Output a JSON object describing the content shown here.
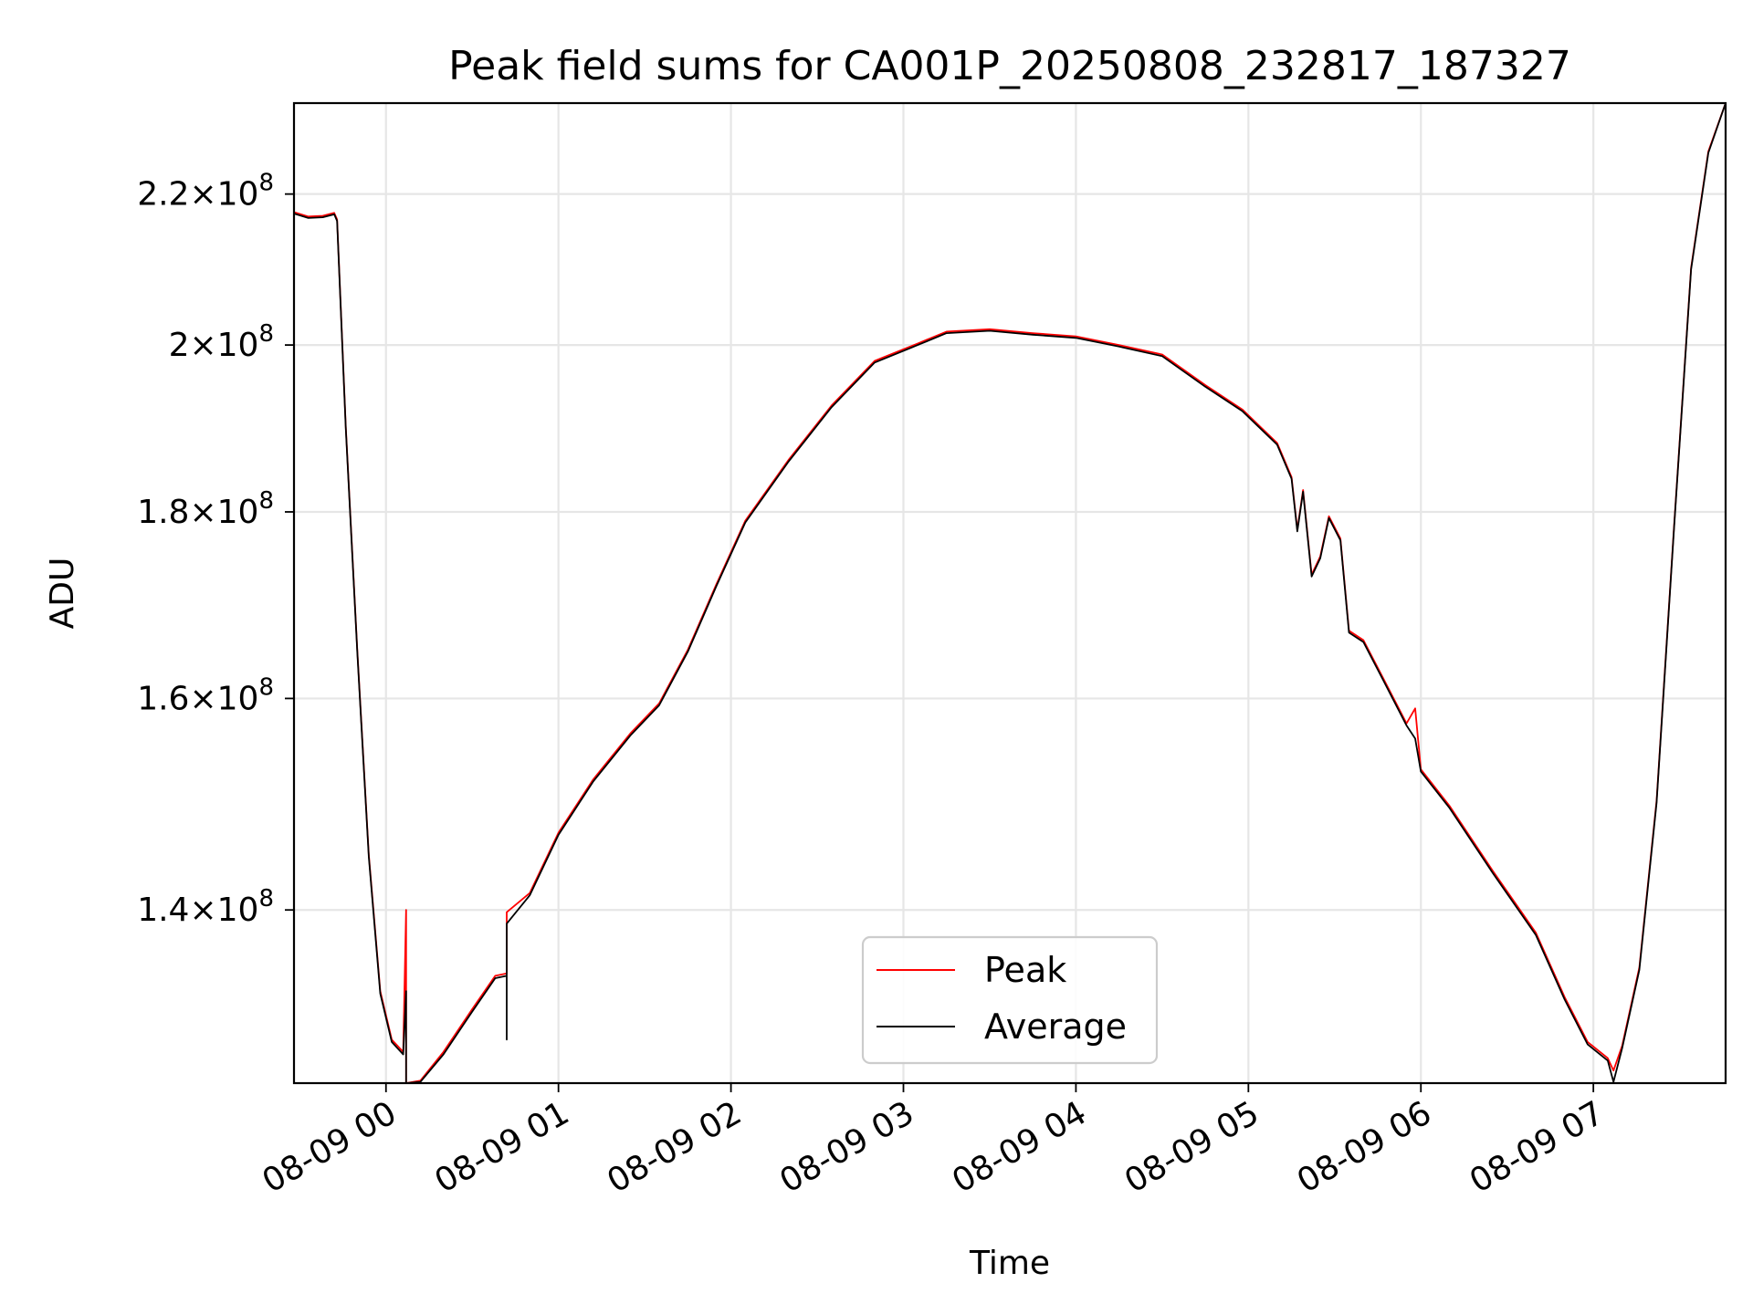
{
  "chart_data": {
    "type": "line",
    "title": "Peak field sums for CA001P_20250808_232817_187327",
    "xlabel": "Time",
    "ylabel": "ADU",
    "x_range": [
      "2025-08-08 23:28",
      "2025-08-09 07:46"
    ],
    "ylim": [
      125500000,
      233000000
    ],
    "yscale": "log",
    "grid": true,
    "legend_position": "lower center",
    "x_ticks": [
      {
        "x": "2025-08-09 00:00",
        "label": "08-09 00"
      },
      {
        "x": "2025-08-09 01:00",
        "label": "08-09 01"
      },
      {
        "x": "2025-08-09 02:00",
        "label": "08-09 02"
      },
      {
        "x": "2025-08-09 03:00",
        "label": "08-09 03"
      },
      {
        "x": "2025-08-09 04:00",
        "label": "08-09 04"
      },
      {
        "x": "2025-08-09 05:00",
        "label": "08-09 05"
      },
      {
        "x": "2025-08-09 06:00",
        "label": "08-09 06"
      },
      {
        "x": "2025-08-09 07:00",
        "label": "08-09 07"
      }
    ],
    "y_ticks": [
      {
        "value": 140000000,
        "mant": "1.4",
        "exp": "8"
      },
      {
        "value": 160000000,
        "mant": "1.6",
        "exp": "8"
      },
      {
        "value": 180000000,
        "mant": "1.8",
        "exp": "8"
      },
      {
        "value": 200000000,
        "mant": "2",
        "exp": "8"
      },
      {
        "value": 220000000,
        "mant": "2.2",
        "exp": "8"
      }
    ],
    "series": [
      {
        "name": "Peak",
        "color": "#ff0000",
        "points": [
          [
            "2025-08-08 23:28",
            217500000
          ],
          [
            "2025-08-08 23:33",
            216900000
          ],
          [
            "2025-08-08 23:38",
            217000000
          ],
          [
            "2025-08-08 23:42",
            217400000
          ],
          [
            "2025-08-08 23:43",
            216500000
          ],
          [
            "2025-08-08 23:46",
            190000000
          ],
          [
            "2025-08-08 23:50",
            165000000
          ],
          [
            "2025-08-08 23:54",
            145000000
          ],
          [
            "2025-08-08 23:58",
            133000000
          ],
          [
            "2025-08-09 00:02",
            129000000
          ],
          [
            "2025-08-09 00:06",
            128000000
          ],
          [
            "2025-08-09 00:07",
            140000000
          ],
          [
            "2025-08-09 00:07",
            125500000
          ],
          [
            "2025-08-09 00:12",
            125700000
          ],
          [
            "2025-08-09 00:20",
            128000000
          ],
          [
            "2025-08-09 00:30",
            131500000
          ],
          [
            "2025-08-09 00:38",
            134300000
          ],
          [
            "2025-08-09 00:42",
            134500000
          ],
          [
            "2025-08-09 00:42",
            139800000
          ],
          [
            "2025-08-09 00:50",
            141500000
          ],
          [
            "2025-08-09 01:00",
            147000000
          ],
          [
            "2025-08-09 01:12",
            152000000
          ],
          [
            "2025-08-09 01:25",
            156500000
          ],
          [
            "2025-08-09 01:35",
            159500000
          ],
          [
            "2025-08-09 01:45",
            165000000
          ],
          [
            "2025-08-09 01:55",
            172000000
          ],
          [
            "2025-08-09 02:05",
            179000000
          ],
          [
            "2025-08-09 02:20",
            186000000
          ],
          [
            "2025-08-09 02:35",
            192500000
          ],
          [
            "2025-08-09 02:50",
            198000000
          ],
          [
            "2025-08-09 03:05",
            200200000
          ],
          [
            "2025-08-09 03:15",
            201700000
          ],
          [
            "2025-08-09 03:30",
            202000000
          ],
          [
            "2025-08-09 03:45",
            201500000
          ],
          [
            "2025-08-09 04:00",
            201100000
          ],
          [
            "2025-08-09 04:15",
            200000000
          ],
          [
            "2025-08-09 04:30",
            198800000
          ],
          [
            "2025-08-09 04:45",
            195000000
          ],
          [
            "2025-08-09 04:58",
            192000000
          ],
          [
            "2025-08-09 05:10",
            188000000
          ],
          [
            "2025-08-09 05:15",
            184000000
          ],
          [
            "2025-08-09 05:17",
            178000000
          ],
          [
            "2025-08-09 05:19",
            182500000
          ],
          [
            "2025-08-09 05:22",
            173000000
          ],
          [
            "2025-08-09 05:25",
            175000000
          ],
          [
            "2025-08-09 05:28",
            179500000
          ],
          [
            "2025-08-09 05:32",
            177000000
          ],
          [
            "2025-08-09 05:35",
            167000000
          ],
          [
            "2025-08-09 05:40",
            166000000
          ],
          [
            "2025-08-09 05:47",
            162000000
          ],
          [
            "2025-08-09 05:55",
            157500000
          ],
          [
            "2025-08-09 05:58",
            159000000
          ],
          [
            "2025-08-09 06:00",
            153000000
          ],
          [
            "2025-08-09 06:10",
            149500000
          ],
          [
            "2025-08-09 06:25",
            143500000
          ],
          [
            "2025-08-09 06:40",
            138000000
          ],
          [
            "2025-08-09 06:50",
            132500000
          ],
          [
            "2025-08-09 06:58",
            128800000
          ],
          [
            "2025-08-09 07:05",
            127500000
          ],
          [
            "2025-08-09 07:07",
            126500000
          ],
          [
            "2025-08-09 07:10",
            128500000
          ],
          [
            "2025-08-09 07:16",
            135000000
          ],
          [
            "2025-08-09 07:22",
            150000000
          ],
          [
            "2025-08-09 07:28",
            178000000
          ],
          [
            "2025-08-09 07:34",
            210000000
          ],
          [
            "2025-08-09 07:40",
            226000000
          ],
          [
            "2025-08-09 07:46",
            233000000
          ]
        ]
      },
      {
        "name": "Average",
        "color": "#000000",
        "points": [
          [
            "2025-08-08 23:28",
            217300000
          ],
          [
            "2025-08-08 23:33",
            216700000
          ],
          [
            "2025-08-08 23:38",
            216800000
          ],
          [
            "2025-08-08 23:42",
            217200000
          ],
          [
            "2025-08-08 23:43",
            216300000
          ],
          [
            "2025-08-08 23:46",
            189800000
          ],
          [
            "2025-08-08 23:50",
            164800000
          ],
          [
            "2025-08-08 23:54",
            144800000
          ],
          [
            "2025-08-08 23:58",
            132800000
          ],
          [
            "2025-08-09 00:02",
            128800000
          ],
          [
            "2025-08-09 00:06",
            127800000
          ],
          [
            "2025-08-09 00:07",
            133000000
          ],
          [
            "2025-08-09 00:07",
            125500000
          ],
          [
            "2025-08-09 00:12",
            125600000
          ],
          [
            "2025-08-09 00:20",
            127800000
          ],
          [
            "2025-08-09 00:30",
            131300000
          ],
          [
            "2025-08-09 00:38",
            134100000
          ],
          [
            "2025-08-09 00:42",
            134300000
          ],
          [
            "2025-08-09 00:42",
            129000000
          ],
          [
            "2025-08-09 00:42",
            138800000
          ],
          [
            "2025-08-09 00:50",
            141300000
          ],
          [
            "2025-08-09 01:00",
            146800000
          ],
          [
            "2025-08-09 01:12",
            151800000
          ],
          [
            "2025-08-09 01:25",
            156300000
          ],
          [
            "2025-08-09 01:35",
            159300000
          ],
          [
            "2025-08-09 01:45",
            164800000
          ],
          [
            "2025-08-09 01:55",
            171800000
          ],
          [
            "2025-08-09 02:05",
            178800000
          ],
          [
            "2025-08-09 02:20",
            185800000
          ],
          [
            "2025-08-09 02:35",
            192300000
          ],
          [
            "2025-08-09 02:50",
            197800000
          ],
          [
            "2025-08-09 03:05",
            200000000
          ],
          [
            "2025-08-09 03:15",
            201500000
          ],
          [
            "2025-08-09 03:30",
            201800000
          ],
          [
            "2025-08-09 03:45",
            201300000
          ],
          [
            "2025-08-09 04:00",
            200900000
          ],
          [
            "2025-08-09 04:15",
            199800000
          ],
          [
            "2025-08-09 04:30",
            198600000
          ],
          [
            "2025-08-09 04:45",
            194800000
          ],
          [
            "2025-08-09 04:58",
            191800000
          ],
          [
            "2025-08-09 05:10",
            187800000
          ],
          [
            "2025-08-09 05:15",
            183800000
          ],
          [
            "2025-08-09 05:17",
            177800000
          ],
          [
            "2025-08-09 05:19",
            182300000
          ],
          [
            "2025-08-09 05:22",
            172800000
          ],
          [
            "2025-08-09 05:25",
            174800000
          ],
          [
            "2025-08-09 05:28",
            179300000
          ],
          [
            "2025-08-09 05:32",
            176800000
          ],
          [
            "2025-08-09 05:35",
            166800000
          ],
          [
            "2025-08-09 05:40",
            165800000
          ],
          [
            "2025-08-09 05:47",
            161800000
          ],
          [
            "2025-08-09 05:55",
            157300000
          ],
          [
            "2025-08-09 05:58",
            156000000
          ],
          [
            "2025-08-09 06:00",
            152800000
          ],
          [
            "2025-08-09 06:10",
            149300000
          ],
          [
            "2025-08-09 06:25",
            143300000
          ],
          [
            "2025-08-09 06:40",
            137800000
          ],
          [
            "2025-08-09 06:50",
            132300000
          ],
          [
            "2025-08-09 06:58",
            128600000
          ],
          [
            "2025-08-09 07:05",
            127300000
          ],
          [
            "2025-08-09 07:07",
            125600000
          ],
          [
            "2025-08-09 07:10",
            128300000
          ],
          [
            "2025-08-09 07:16",
            134800000
          ],
          [
            "2025-08-09 07:22",
            149800000
          ],
          [
            "2025-08-09 07:28",
            177800000
          ],
          [
            "2025-08-09 07:34",
            209800000
          ],
          [
            "2025-08-09 07:40",
            225800000
          ],
          [
            "2025-08-09 07:46",
            233000000
          ]
        ]
      }
    ]
  }
}
